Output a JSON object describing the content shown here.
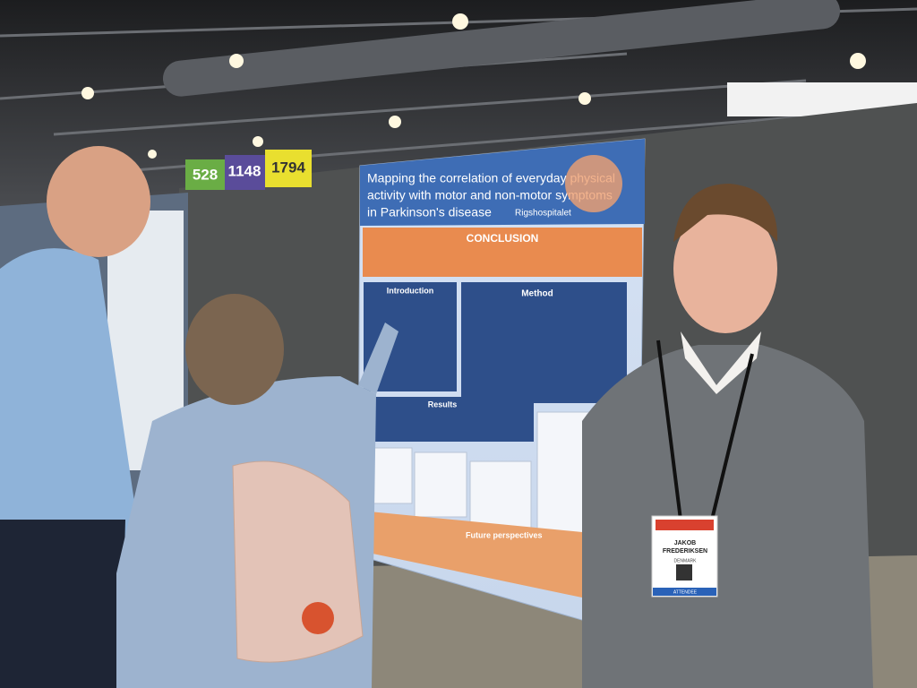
{
  "booth_numbers": [
    528,
    1148,
    1794
  ],
  "poster": {
    "title_lines": [
      "Mapping the correlation of everyday physical",
      "activity with motor and non-motor symptoms",
      "in Parkinson's disease"
    ],
    "institution": "Rigshospitalet",
    "sections": [
      "CONCLUSION",
      "Introduction",
      "Method",
      "Results",
      "Future perspectives"
    ]
  },
  "badge": {
    "name_lines": [
      "JAKOB",
      "FREDERIKSEN"
    ],
    "country": "DENMARK",
    "role": "ATTENDEE"
  }
}
